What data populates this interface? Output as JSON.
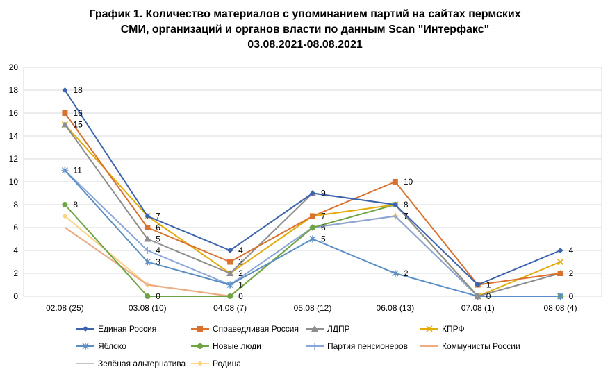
{
  "chart_data": {
    "type": "line",
    "title_lines": [
      "График 1. Количество материалов с упоминанием партий на сайтах пермских",
      "СМИ, организаций и органов власти по данным Scan \"Интерфакс\"",
      "03.08.2021-08.08.2021"
    ],
    "categories": [
      "02.08 (25)",
      "03.08 (10)",
      "04.08 (7)",
      "05.08 (12)",
      "06.08 (13)",
      "07.08 (1)",
      "08.08 (4)"
    ],
    "ylim": [
      0,
      20
    ],
    "yticks": [
      "0",
      "2",
      "4",
      "6",
      "8",
      "10",
      "12",
      "14",
      "16",
      "18",
      "20"
    ],
    "grid": true,
    "legend_position": "bottom",
    "series": [
      {
        "name": "Единая Россия",
        "color": "#3c64ae",
        "marker": "diamond",
        "values": [
          18,
          7,
          4,
          9,
          8,
          1,
          4
        ],
        "labels": [
          "18",
          "7",
          "4",
          "",
          "",
          "",
          "4"
        ]
      },
      {
        "name": "Справедливая Россия",
        "color": "#d9722e",
        "marker": "square",
        "values": [
          16,
          6,
          3,
          7,
          10,
          1,
          2
        ],
        "labels": [
          "16",
          "6",
          "3",
          "",
          "10",
          "1",
          "2"
        ]
      },
      {
        "name": "ЛДПР",
        "color": "#8e8e8e",
        "marker": "triangle",
        "values": [
          15,
          5,
          2,
          9,
          8,
          0,
          2
        ],
        "labels": [
          "15",
          "5",
          "",
          "9",
          "8",
          "",
          ""
        ]
      },
      {
        "name": "КПРФ",
        "color": "#e3ab09",
        "marker": "x",
        "values": [
          15,
          7,
          2,
          7,
          8,
          0,
          3
        ],
        "labels": [
          "15",
          "",
          "2",
          "7",
          "",
          "0",
          ""
        ]
      },
      {
        "name": "Яблоко",
        "color": "#5a8ec4",
        "marker": "star",
        "values": [
          11,
          3,
          1,
          5,
          2,
          0,
          0
        ],
        "labels": [
          "11",
          "3",
          "1",
          "5",
          "2",
          "",
          ""
        ]
      },
      {
        "name": "Новые люди",
        "color": "#6ea544",
        "marker": "circle",
        "values": [
          8,
          0,
          0,
          6,
          8,
          0,
          0
        ],
        "labels": [
          "8",
          "0",
          "",
          "6",
          "",
          "",
          ""
        ]
      },
      {
        "name": "Партия пенсионеров",
        "color": "#8aa6d8",
        "marker": "plus",
        "values": [
          11,
          4,
          1,
          6,
          7,
          0,
          0
        ],
        "labels": [
          "",
          "4",
          "",
          "",
          "7",
          "",
          ""
        ]
      },
      {
        "name": "Коммунисты России",
        "color": "#efaa82",
        "marker": "none",
        "values": [
          6,
          1,
          0,
          6,
          7,
          0,
          0
        ],
        "labels": [
          "",
          "",
          "",
          "",
          "",
          "",
          ""
        ]
      },
      {
        "name": "Зелёная альтернатива",
        "color": "#c3c3c3",
        "marker": "none",
        "values": [
          6,
          1,
          0,
          6,
          7,
          0,
          0
        ],
        "labels": [
          "",
          "",
          "",
          "",
          "",
          "",
          "0"
        ]
      },
      {
        "name": "Родина",
        "color": "#fcd17f",
        "marker": "diamond",
        "values": [
          7,
          1,
          0,
          6,
          7,
          0,
          0
        ],
        "labels": [
          "",
          "",
          "0",
          "",
          "",
          "",
          ""
        ]
      }
    ]
  }
}
